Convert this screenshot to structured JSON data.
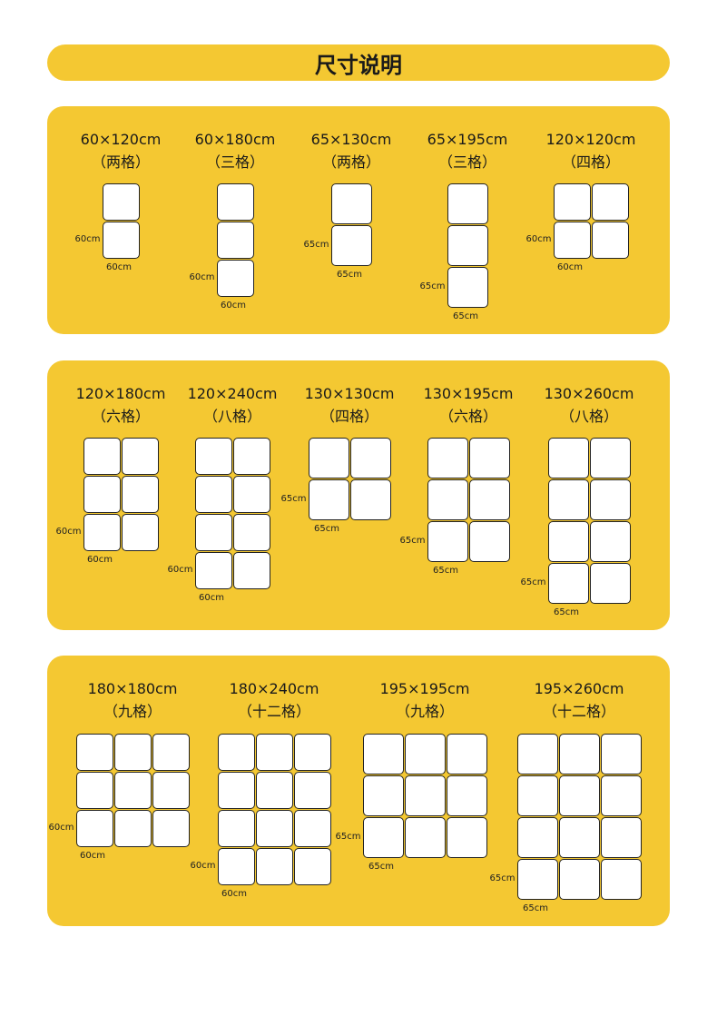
{
  "header": {
    "title": "尺寸说明"
  },
  "colors": {
    "panel": "#f4c832",
    "tile": "#ffffff",
    "outline": "#222222"
  },
  "panels": [
    {
      "items": [
        {
          "size": "60×120cm",
          "tiles": "（两格）",
          "cols": 1,
          "rows": 2,
          "unit": "60cm"
        },
        {
          "size": "60×180cm",
          "tiles": "（三格）",
          "cols": 1,
          "rows": 3,
          "unit": "60cm"
        },
        {
          "size": "65×130cm",
          "tiles": "（两格）",
          "cols": 1,
          "rows": 2,
          "unit": "65cm"
        },
        {
          "size": "65×195cm",
          "tiles": "（三格）",
          "cols": 1,
          "rows": 3,
          "unit": "65cm"
        },
        {
          "size": "120×120cm",
          "tiles": "（四格）",
          "cols": 2,
          "rows": 2,
          "unit": "60cm"
        }
      ]
    },
    {
      "items": [
        {
          "size": "120×180cm",
          "tiles": "（六格）",
          "cols": 2,
          "rows": 3,
          "unit": "60cm"
        },
        {
          "size": "120×240cm",
          "tiles": "（八格）",
          "cols": 2,
          "rows": 4,
          "unit": "60cm"
        },
        {
          "size": "130×130cm",
          "tiles": "（四格）",
          "cols": 2,
          "rows": 2,
          "unit": "65cm"
        },
        {
          "size": "130×195cm",
          "tiles": "（六格）",
          "cols": 2,
          "rows": 3,
          "unit": "65cm"
        },
        {
          "size": "130×260cm",
          "tiles": "（八格）",
          "cols": 2,
          "rows": 4,
          "unit": "65cm"
        }
      ]
    },
    {
      "items": [
        {
          "size": "180×180cm",
          "tiles": "（九格）",
          "cols": 3,
          "rows": 3,
          "unit": "60cm"
        },
        {
          "size": "180×240cm",
          "tiles": "（十二格）",
          "cols": 3,
          "rows": 4,
          "unit": "60cm"
        },
        {
          "size": "195×195cm",
          "tiles": "（九格）",
          "cols": 3,
          "rows": 3,
          "unit": "65cm"
        },
        {
          "size": "195×260cm",
          "tiles": "（十二格）",
          "cols": 3,
          "rows": 4,
          "unit": "65cm"
        }
      ]
    }
  ]
}
